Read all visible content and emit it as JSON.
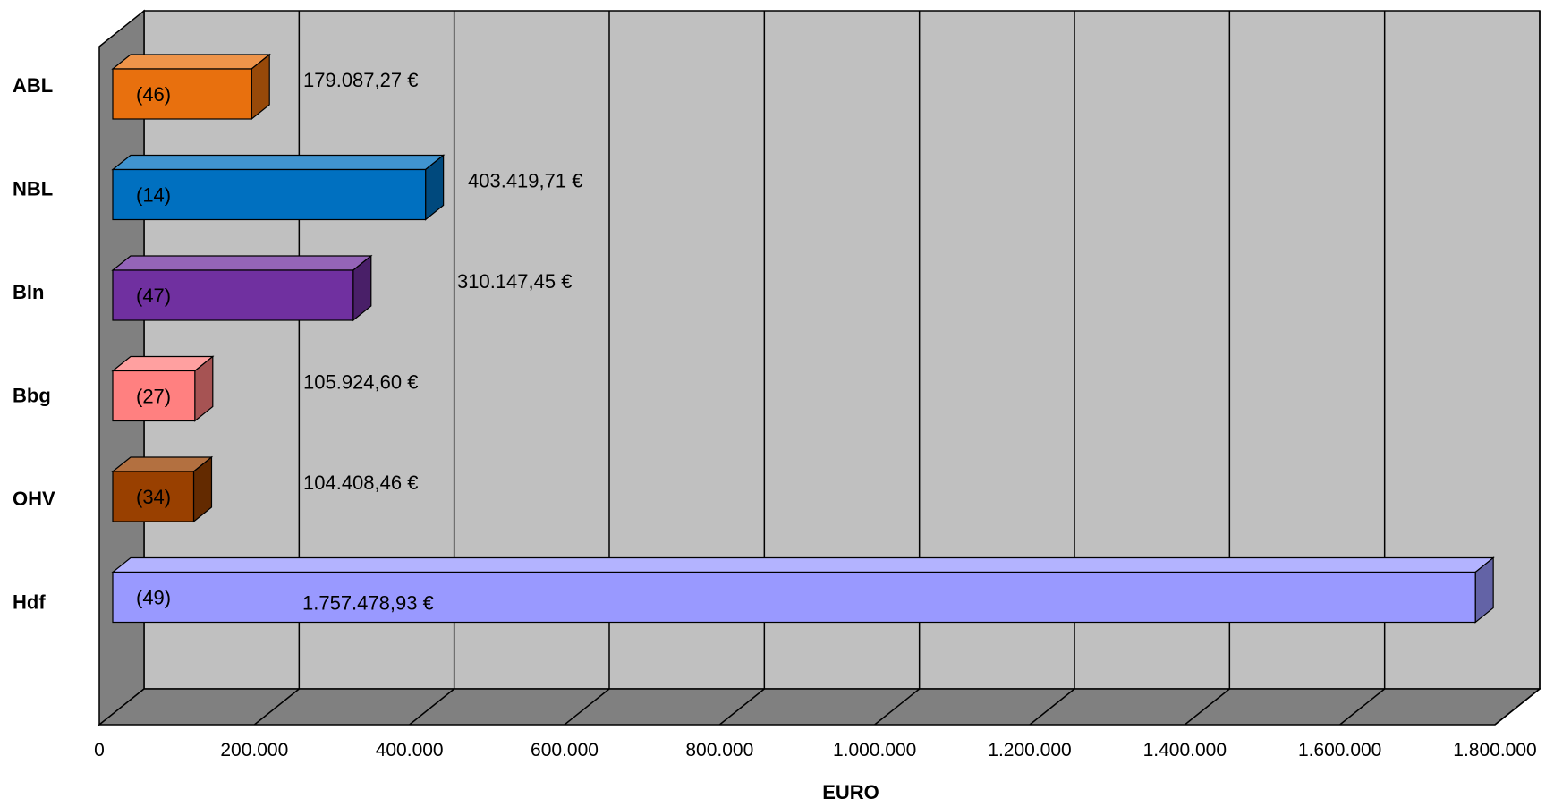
{
  "chart_data": {
    "type": "bar",
    "orientation": "horizontal",
    "style": "3d",
    "categories": [
      "ABL",
      "NBL",
      "Bln",
      "Bbg",
      "OHV",
      "Hdf"
    ],
    "values": [
      179087.27,
      403419.71,
      310147.45,
      105924.6,
      104408.46,
      1757478.93
    ],
    "value_labels": [
      "179.087,27 €",
      "403.419,71 €",
      "310.147,45 €",
      "105.924,60 €",
      "104.408,46 €",
      "1.757.478,93 €"
    ],
    "count_labels": [
      "(46)",
      "(14)",
      "(47)",
      "(27)",
      "(34)",
      "(49)"
    ],
    "colors": [
      "#E8700E",
      "#0070C0",
      "#7030A0",
      "#FF8080",
      "#994000",
      "#9999FF"
    ],
    "xlabel": "EURO",
    "xlim": [
      0,
      1800000
    ],
    "xticks": [
      0,
      200000,
      400000,
      600000,
      800000,
      1000000,
      1200000,
      1400000,
      1600000,
      1800000
    ],
    "xtick_labels": [
      "0",
      "200.000",
      "400.000",
      "600.000",
      "800.000",
      "1.000.000",
      "1.200.000",
      "1.400.000",
      "1.600.000",
      "1.800.000"
    ],
    "grid": true,
    "wall_color": "#C0C0C0",
    "side_wall_color": "#808080",
    "floor_color": "#808080"
  }
}
